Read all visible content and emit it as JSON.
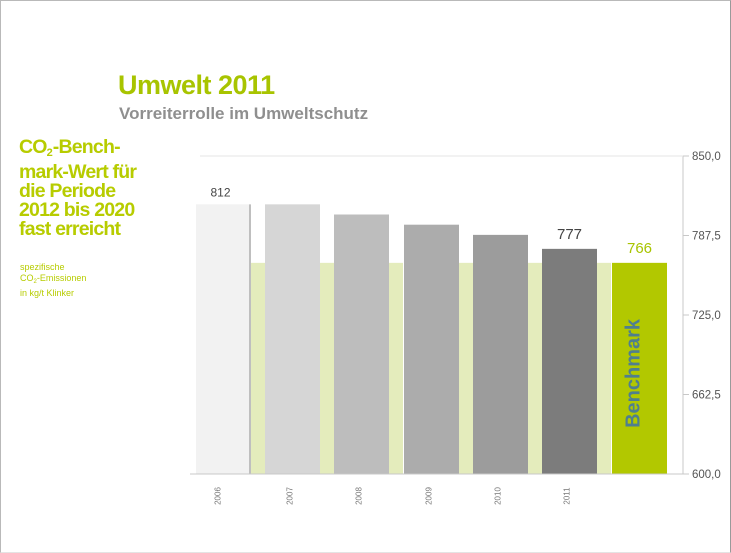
{
  "header": {
    "title": "Umwelt 2011",
    "subtitle": "Vorreiterrolle im Umweltschutz"
  },
  "sidebar": {
    "headline_line1_pre": "CO",
    "headline_line1_sub": "2",
    "headline_line1_post": "-Bench-",
    "headline_rest": [
      "mark-Wert für",
      "die Periode",
      "2012 bis 2020",
      "fast erreicht"
    ],
    "note_line1": "spezifische",
    "note_line2_pre": "CO",
    "note_line2_sub": "2",
    "note_line2_post": "-Emissionen",
    "note_line3": "in kg/t Klinker"
  },
  "chart_data": {
    "type": "bar",
    "categories": [
      "2006",
      "2007",
      "2008",
      "2009",
      "2010",
      "2011",
      ""
    ],
    "values": [
      812,
      812,
      804,
      796,
      788,
      777,
      766
    ],
    "data_labels": [
      "812",
      "",
      "",
      "",
      "",
      "777",
      "766"
    ],
    "benchmark_value": 766,
    "benchmark_label": "Benchmark",
    "ylim": [
      600,
      850
    ],
    "yticks": [
      600,
      662.5,
      725,
      787.5,
      850
    ],
    "ytick_labels": [
      "600,0",
      "662,5",
      "725,0",
      "787,5",
      "850,0"
    ],
    "y_axis_side": "right",
    "grid": false,
    "colors": {
      "bars": [
        "#f2f2f2",
        "#d6d6d6",
        "#bdbdbd",
        "#acacac",
        "#9c9c9c",
        "#7c7c7c",
        "#b2c800"
      ],
      "benchmark_band": "#e4ecbc",
      "accent": "#a8c400",
      "axis": "#c8c8c8",
      "tick_text": "#555555",
      "benchmark_text": "#4f7f8f"
    }
  }
}
